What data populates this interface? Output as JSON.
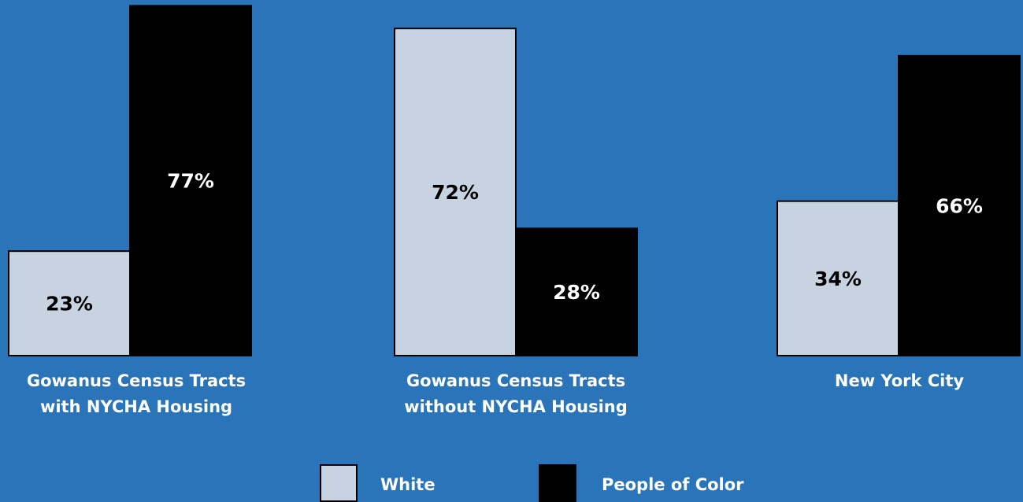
{
  "chart_data": {
    "type": "bar",
    "categories": [
      "Gowanus Census Tracts with NYCHA Housing",
      "Gowanus Census Tracts without NYCHA Housing",
      "New York City"
    ],
    "category_lines": [
      [
        "Gowanus Census Tracts",
        "with NYCHA Housing"
      ],
      [
        "Gowanus Census Tracts",
        "without NYCHA Housing"
      ],
      [
        "New York City"
      ]
    ],
    "series": [
      {
        "name": "White",
        "values": [
          23,
          72,
          34
        ],
        "labels": [
          "23%",
          "72%",
          "34%"
        ],
        "color": "#c8d3e2"
      },
      {
        "name": "People of Color",
        "values": [
          77,
          28,
          66
        ],
        "labels": [
          "77%",
          "28%",
          "66%"
        ],
        "color": "#000000"
      }
    ],
    "unit": "%",
    "ylim": [
      0,
      80
    ],
    "grid": false,
    "legend_position": "bottom-center",
    "title": "",
    "xlabel": "",
    "ylabel": ""
  }
}
